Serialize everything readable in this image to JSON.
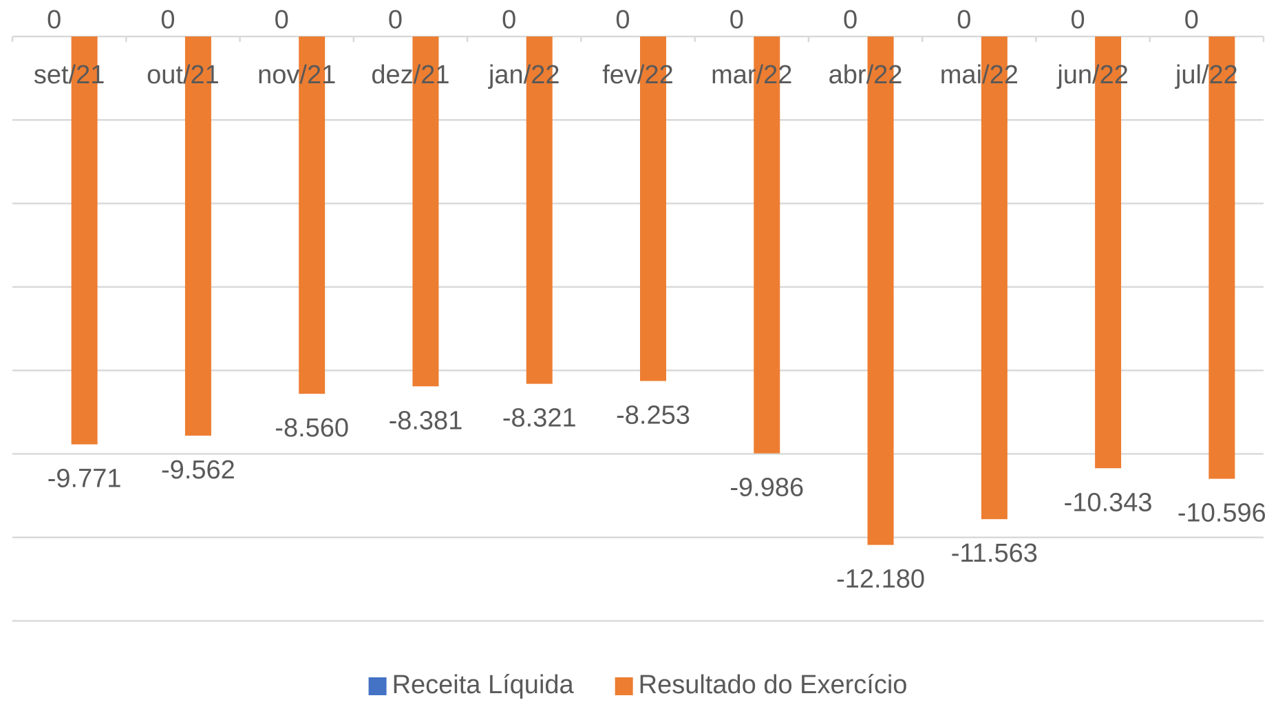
{
  "chart_data": {
    "type": "bar",
    "categories": [
      "set/21",
      "out/21",
      "nov/21",
      "dez/21",
      "jan/22",
      "fev/22",
      "mar/22",
      "abr/22",
      "mai/22",
      "jun/22",
      "jul/22"
    ],
    "series": [
      {
        "name": "Receita Líquida",
        "color": "#4472c4",
        "values": [
          0,
          0,
          0,
          0,
          0,
          0,
          0,
          0,
          0,
          0,
          0
        ]
      },
      {
        "name": "Resultado do Exercício",
        "color": "#ed7d31",
        "values": [
          -9771,
          -9562,
          -8560,
          -8381,
          -8321,
          -8253,
          -9986,
          -12180,
          -11563,
          -10343,
          -10596
        ],
        "value_labels": [
          "-9.771",
          "-9.562",
          "-8.560",
          "-8.381",
          "-8.321",
          "-8.253",
          "-9.986",
          "-12.180",
          "-11.563",
          "-10.343",
          "-10.596"
        ]
      }
    ],
    "ylim": [
      -14000,
      0
    ],
    "yticks": [
      -14000,
      -12000,
      -10000,
      -8000,
      -6000,
      -4000,
      -2000,
      0
    ],
    "grid": true,
    "legend": "bottom"
  }
}
